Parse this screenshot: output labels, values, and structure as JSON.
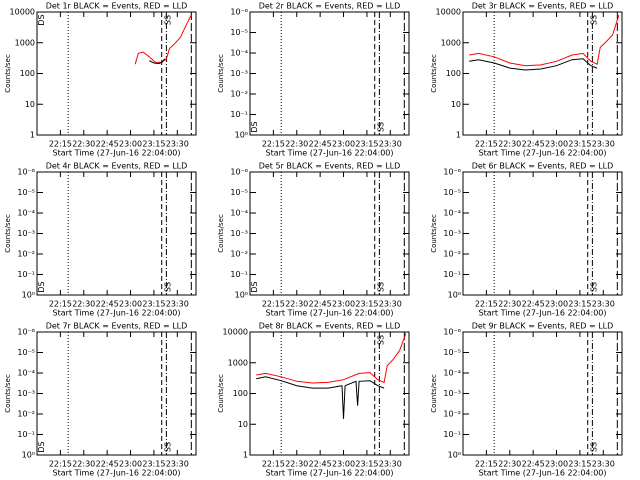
{
  "chart_data": [
    {
      "type": "line",
      "title": "Det 1r BLACK = Events, RED = LLD",
      "xlabel": "Start Time (27-Jun-16 22:04:00)",
      "ylabel": "Counts/sec",
      "log_y": true,
      "xlim": [
        "22:00",
        "23:42"
      ],
      "xticks": [
        "22:15",
        "22:30",
        "22:45",
        "23:00",
        "23:15",
        "23:30"
      ],
      "ylim": [
        1,
        10000
      ],
      "yticks": [
        1,
        10,
        100,
        1000,
        10000
      ],
      "series": [
        {
          "color": "#ff0000",
          "x": [
            "23:03",
            "23:05",
            "23:08",
            "23:12",
            "23:16",
            "23:20",
            "23:23",
            "23:25",
            "23:28",
            "23:32",
            "23:36",
            "23:39"
          ],
          "values": [
            200,
            450,
            500,
            350,
            230,
            230,
            300,
            650,
            900,
            1500,
            4000,
            8000
          ]
        },
        {
          "color": "#000000",
          "x": [
            "23:12",
            "23:15",
            "23:18",
            "23:20",
            "23:22"
          ],
          "values": [
            260,
            220,
            210,
            230,
            300
          ]
        }
      ],
      "vlines": [
        {
          "time": "22:20",
          "style": "dotted"
        },
        {
          "time": "23:20",
          "style": "dashed"
        },
        {
          "time": "23:23",
          "style": "dashdot"
        },
        {
          "time": "23:39",
          "style": "longdash"
        }
      ],
      "annotations": [
        {
          "text": "SS",
          "time": "23:22",
          "position": "top"
        },
        {
          "text": "DS",
          "time": "22:01",
          "position": "top"
        }
      ]
    },
    {
      "type": "line",
      "title": "Det 2r BLACK = Events, RED = LLD",
      "xlabel": "Start Time (27-Jun-16 22:04:00)",
      "ylabel": "Counts/sec",
      "log_y": true,
      "xlim": [
        "22:00",
        "23:42"
      ],
      "xticks": [
        "22:15",
        "22:30",
        "22:45",
        "23:00",
        "23:15",
        "23:30"
      ],
      "ylim": [
        1,
        1e-06
      ],
      "yticks": [
        {
          "value": 1,
          "label": "10⁰"
        },
        {
          "value": 0.1,
          "label": "10⁻¹"
        },
        {
          "value": 0.01,
          "label": "10⁻²"
        },
        {
          "value": 0.001,
          "label": "10⁻³"
        },
        {
          "value": 0.0001,
          "label": "10⁻⁴"
        },
        {
          "value": 1e-05,
          "label": "10⁻⁵"
        },
        {
          "value": 1e-06,
          "label": "10⁻⁶"
        }
      ],
      "series": [],
      "vlines": [
        {
          "time": "22:20",
          "style": "dotted"
        },
        {
          "time": "23:20",
          "style": "dashed"
        },
        {
          "time": "23:23",
          "style": "dashdot"
        },
        {
          "time": "23:39",
          "style": "longdash"
        }
      ],
      "annotations": [
        {
          "text": "SS",
          "time": "23:22",
          "position": "bottom"
        },
        {
          "text": "DS",
          "time": "22:01",
          "position": "bottom"
        }
      ]
    },
    {
      "type": "line",
      "title": "Det 3r BLACK = Events, RED = LLD",
      "xlabel": "Start Time (27-Jun-16 22:04:00)",
      "ylabel": "Counts/sec",
      "log_y": true,
      "xlim": [
        "22:00",
        "23:42"
      ],
      "xticks": [
        "22:15",
        "22:30",
        "22:45",
        "23:00",
        "23:15",
        "23:30"
      ],
      "ylim": [
        1,
        10000
      ],
      "yticks": [
        1,
        10,
        100,
        1000,
        10000
      ],
      "series": [
        {
          "color": "#ff0000",
          "x": [
            "22:04",
            "22:10",
            "22:20",
            "22:30",
            "22:40",
            "22:50",
            "23:00",
            "23:10",
            "23:17",
            "23:22",
            "23:26",
            "23:28",
            "23:32",
            "23:36",
            "23:40"
          ],
          "values": [
            400,
            450,
            350,
            220,
            180,
            190,
            250,
            400,
            450,
            250,
            200,
            700,
            1100,
            1800,
            8000
          ]
        },
        {
          "color": "#000000",
          "x": [
            "22:04",
            "22:10",
            "22:20",
            "22:30",
            "22:40",
            "22:50",
            "23:00",
            "23:10",
            "23:17",
            "23:22",
            "23:26"
          ],
          "values": [
            250,
            280,
            220,
            150,
            130,
            140,
            180,
            280,
            300,
            180,
            150
          ]
        }
      ],
      "vlines": [
        {
          "time": "22:20",
          "style": "dotted"
        },
        {
          "time": "23:20",
          "style": "dashed"
        },
        {
          "time": "23:23",
          "style": "dashdot"
        },
        {
          "time": "23:39",
          "style": "longdash"
        }
      ],
      "annotations": [
        {
          "text": "SS",
          "time": "23:22",
          "position": "top"
        }
      ]
    },
    {
      "type": "line",
      "title": "Det 4r BLACK = Events, RED = LLD",
      "xlabel": "Start Time (27-Jun-16 22:04:00)",
      "ylabel": "Counts/sec",
      "log_y": true,
      "xlim": [
        "22:00",
        "23:42"
      ],
      "xticks": [
        "22:15",
        "22:30",
        "22:45",
        "23:00",
        "23:15",
        "23:30"
      ],
      "ylim": [
        1,
        1e-06
      ],
      "yticks": [
        {
          "value": 1,
          "label": "10⁰"
        },
        {
          "value": 0.1,
          "label": "10⁻¹"
        },
        {
          "value": 0.01,
          "label": "10⁻²"
        },
        {
          "value": 0.001,
          "label": "10⁻³"
        },
        {
          "value": 0.0001,
          "label": "10⁻⁴"
        },
        {
          "value": 1e-05,
          "label": "10⁻⁵"
        },
        {
          "value": 1e-06,
          "label": "10⁻⁶"
        }
      ],
      "series": [],
      "vlines": [
        {
          "time": "22:20",
          "style": "dotted"
        },
        {
          "time": "23:20",
          "style": "dashed"
        },
        {
          "time": "23:23",
          "style": "dashdot"
        },
        {
          "time": "23:39",
          "style": "longdash"
        }
      ],
      "annotations": [
        {
          "text": "SS",
          "time": "23:22",
          "position": "bottom"
        },
        {
          "text": "DS",
          "time": "22:01",
          "position": "bottom"
        }
      ]
    },
    {
      "type": "line",
      "title": "Det 5r BLACK = Events, RED = LLD",
      "xlabel": "Start Time (27-Jun-16 22:04:00)",
      "ylabel": "Counts/sec",
      "log_y": true,
      "xlim": [
        "22:00",
        "23:42"
      ],
      "xticks": [
        "22:15",
        "22:30",
        "22:45",
        "23:00",
        "23:15",
        "23:30"
      ],
      "ylim": [
        1,
        1e-06
      ],
      "yticks": [
        {
          "value": 1,
          "label": "10⁰"
        },
        {
          "value": 0.1,
          "label": "10⁻¹"
        },
        {
          "value": 0.01,
          "label": "10⁻²"
        },
        {
          "value": 0.001,
          "label": "10⁻³"
        },
        {
          "value": 0.0001,
          "label": "10⁻⁴"
        },
        {
          "value": 1e-05,
          "label": "10⁻⁵"
        },
        {
          "value": 1e-06,
          "label": "10⁻⁶"
        }
      ],
      "series": [],
      "vlines": [
        {
          "time": "22:20",
          "style": "dotted"
        },
        {
          "time": "23:20",
          "style": "dashed"
        },
        {
          "time": "23:23",
          "style": "dashdot"
        },
        {
          "time": "23:39",
          "style": "longdash"
        }
      ],
      "annotations": [
        {
          "text": "SS",
          "time": "23:22",
          "position": "bottom"
        },
        {
          "text": "DS",
          "time": "22:01",
          "position": "bottom"
        }
      ]
    },
    {
      "type": "line",
      "title": "Det 6r BLACK = Events, RED = LLD",
      "xlabel": "Start Time (27-Jun-16 22:04:00)",
      "ylabel": "Counts/sec",
      "log_y": true,
      "xlim": [
        "22:00",
        "23:42"
      ],
      "xticks": [
        "22:15",
        "22:30",
        "22:45",
        "23:00",
        "23:15",
        "23:30"
      ],
      "ylim": [
        1,
        1e-06
      ],
      "yticks": [
        {
          "value": 1,
          "label": "10⁰"
        },
        {
          "value": 0.1,
          "label": "10⁻¹"
        },
        {
          "value": 0.01,
          "label": "10⁻²"
        },
        {
          "value": 0.001,
          "label": "10⁻³"
        },
        {
          "value": 0.0001,
          "label": "10⁻⁴"
        },
        {
          "value": 1e-05,
          "label": "10⁻⁵"
        },
        {
          "value": 1e-06,
          "label": "10⁻⁶"
        }
      ],
      "series": [],
      "vlines": [
        {
          "time": "22:20",
          "style": "dotted"
        },
        {
          "time": "23:20",
          "style": "dashed"
        },
        {
          "time": "23:23",
          "style": "dashdot"
        },
        {
          "time": "23:39",
          "style": "longdash"
        }
      ],
      "annotations": [
        {
          "text": "SS",
          "time": "23:22",
          "position": "bottom"
        }
      ]
    },
    {
      "type": "line",
      "title": "Det 7r BLACK = Events, RED = LLD",
      "xlabel": "Start Time (27-Jun-16 22:04:00)",
      "ylabel": "Counts/sec",
      "log_y": true,
      "xlim": [
        "22:00",
        "23:42"
      ],
      "xticks": [
        "22:15",
        "22:30",
        "22:45",
        "23:00",
        "23:15",
        "23:30"
      ],
      "ylim": [
        1,
        1e-06
      ],
      "yticks": [
        {
          "value": 1,
          "label": "10⁰"
        },
        {
          "value": 0.1,
          "label": "10⁻¹"
        },
        {
          "value": 0.01,
          "label": "10⁻²"
        },
        {
          "value": 0.001,
          "label": "10⁻³"
        },
        {
          "value": 0.0001,
          "label": "10⁻⁴"
        },
        {
          "value": 1e-05,
          "label": "10⁻⁵"
        },
        {
          "value": 1e-06,
          "label": "10⁻⁶"
        }
      ],
      "series": [],
      "vlines": [
        {
          "time": "22:20",
          "style": "dotted"
        },
        {
          "time": "23:20",
          "style": "dashed"
        },
        {
          "time": "23:23",
          "style": "dashdot"
        },
        {
          "time": "23:39",
          "style": "longdash"
        }
      ],
      "annotations": [
        {
          "text": "SS",
          "time": "23:22",
          "position": "bottom"
        },
        {
          "text": "DS",
          "time": "22:01",
          "position": "bottom"
        }
      ]
    },
    {
      "type": "line",
      "title": "Det 8r BLACK = Events, RED = LLD",
      "xlabel": "Start Time (27-Jun-16 22:04:00)",
      "ylabel": "Counts/sec",
      "log_y": true,
      "xlim": [
        "22:00",
        "23:42"
      ],
      "xticks": [
        "22:15",
        "22:30",
        "22:45",
        "23:00",
        "23:15",
        "23:30"
      ],
      "ylim": [
        1,
        10000
      ],
      "yticks": [
        1,
        10,
        100,
        1000,
        10000
      ],
      "series": [
        {
          "color": "#ff0000",
          "x": [
            "22:04",
            "22:10",
            "22:20",
            "22:30",
            "22:40",
            "22:50",
            "23:00",
            "23:10",
            "23:17",
            "23:22",
            "23:26",
            "23:28",
            "23:32",
            "23:36",
            "23:40"
          ],
          "values": [
            400,
            450,
            350,
            250,
            220,
            230,
            280,
            450,
            480,
            280,
            230,
            800,
            1300,
            2500,
            9000
          ]
        },
        {
          "color": "#000000",
          "x": [
            "22:04",
            "22:10",
            "22:20",
            "22:30",
            "22:40",
            "22:50",
            "22:59",
            "23:00",
            "23:01",
            "23:08",
            "23:09",
            "23:10",
            "23:17",
            "23:22",
            "23:26"
          ],
          "values": [
            300,
            350,
            260,
            180,
            150,
            150,
            180,
            15,
            180,
            250,
            40,
            250,
            260,
            180,
            150
          ]
        }
      ],
      "vlines": [
        {
          "time": "22:20",
          "style": "dotted"
        },
        {
          "time": "23:20",
          "style": "dashed"
        },
        {
          "time": "23:23",
          "style": "dashdot"
        },
        {
          "time": "23:39",
          "style": "longdash"
        }
      ],
      "annotations": [
        {
          "text": "SS",
          "time": "23:22",
          "position": "top"
        }
      ]
    },
    {
      "type": "line",
      "title": "Det 9r BLACK = Events, RED = LLD",
      "xlabel": "Start Time (27-Jun-16 22:04:00)",
      "ylabel": "Counts/sec",
      "log_y": true,
      "xlim": [
        "22:00",
        "23:42"
      ],
      "xticks": [
        "22:15",
        "22:30",
        "22:45",
        "23:00",
        "23:15",
        "23:30"
      ],
      "ylim": [
        1,
        1e-06
      ],
      "yticks": [
        {
          "value": 1,
          "label": "10⁰"
        },
        {
          "value": 0.1,
          "label": "10⁻¹"
        },
        {
          "value": 0.01,
          "label": "10⁻²"
        },
        {
          "value": 0.001,
          "label": "10⁻³"
        },
        {
          "value": 0.0001,
          "label": "10⁻⁴"
        },
        {
          "value": 1e-05,
          "label": "10⁻⁵"
        },
        {
          "value": 1e-06,
          "label": "10⁻⁶"
        }
      ],
      "series": [],
      "vlines": [
        {
          "time": "22:20",
          "style": "dotted"
        },
        {
          "time": "23:20",
          "style": "dashed"
        },
        {
          "time": "23:23",
          "style": "dashdot"
        },
        {
          "time": "23:39",
          "style": "longdash"
        }
      ],
      "annotations": [
        {
          "text": "SS",
          "time": "23:22",
          "position": "bottom"
        }
      ]
    }
  ]
}
